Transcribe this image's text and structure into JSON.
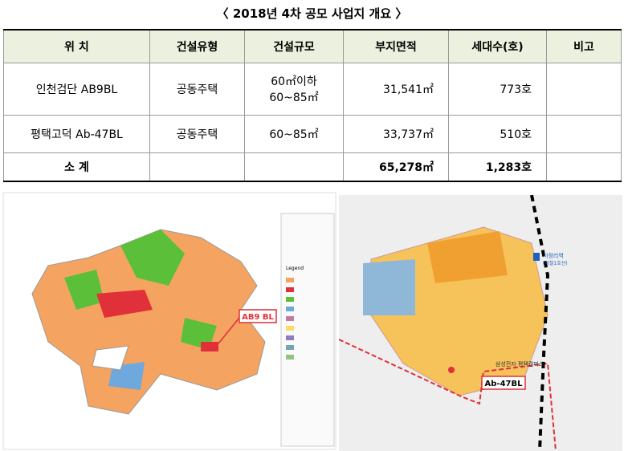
{
  "title": "〈 2018년 4차 공모 사업지 개요 〉",
  "table": {
    "headers": [
      "위 치",
      "건설유형",
      "건설규모",
      "부지면적",
      "세대수(호)",
      "비고"
    ],
    "rows": [
      {
        "name": "인천검단 AB9BL",
        "type": "공동주택",
        "size": [
          "60㎡이하",
          "60~85㎡"
        ],
        "area": "31,541㎡",
        "units": "773호"
      },
      {
        "name": "평택고덕 Ab-47BL",
        "type": "공동주택",
        "size": [
          "60~85㎡"
        ],
        "area": "33,737㎡",
        "units": "510호"
      }
    ],
    "subtotal": {
      "name": "소 계",
      "area": "65,278㎡",
      "units": "1,283호"
    }
  },
  "maps": {
    "left": {
      "label": "AB9 BL",
      "legend_title": "Legend"
    },
    "right": {
      "label": "Ab-47BL",
      "station": "서정리역",
      "station_sub": "(국철1호선)",
      "campus": "삼성전자 평택캠퍼스"
    }
  }
}
